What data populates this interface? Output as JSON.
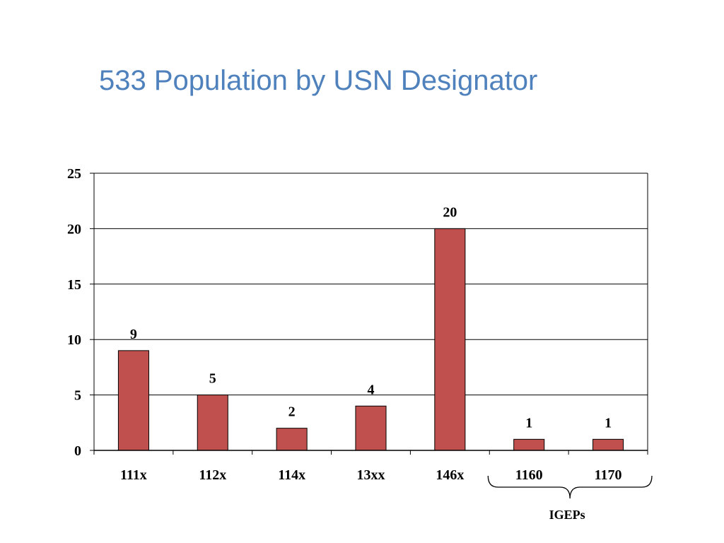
{
  "slide": {
    "title": "533 Population by USN Designator"
  },
  "chart_data": {
    "type": "bar",
    "title": "533 Population by USN Designator",
    "categories": [
      "111x",
      "112x",
      "114x",
      "13xx",
      "146x",
      "1160",
      "1170"
    ],
    "values": [
      9,
      5,
      2,
      4,
      20,
      1,
      1
    ],
    "data_labels": [
      "9",
      "5",
      "2",
      "4",
      "20",
      "1",
      "1"
    ],
    "xlabel": "",
    "ylabel": "",
    "ylim": [
      0,
      25
    ],
    "yticks": [
      "0",
      "5",
      "10",
      "15",
      "20",
      "25"
    ],
    "grid": true,
    "legend": "none",
    "bar_color": "#c0504d",
    "bar_edge_color": "#000000",
    "annotations": [
      {
        "text": "IGEPs",
        "spans_categories": [
          "1160",
          "1170"
        ],
        "style": "brace"
      }
    ]
  }
}
